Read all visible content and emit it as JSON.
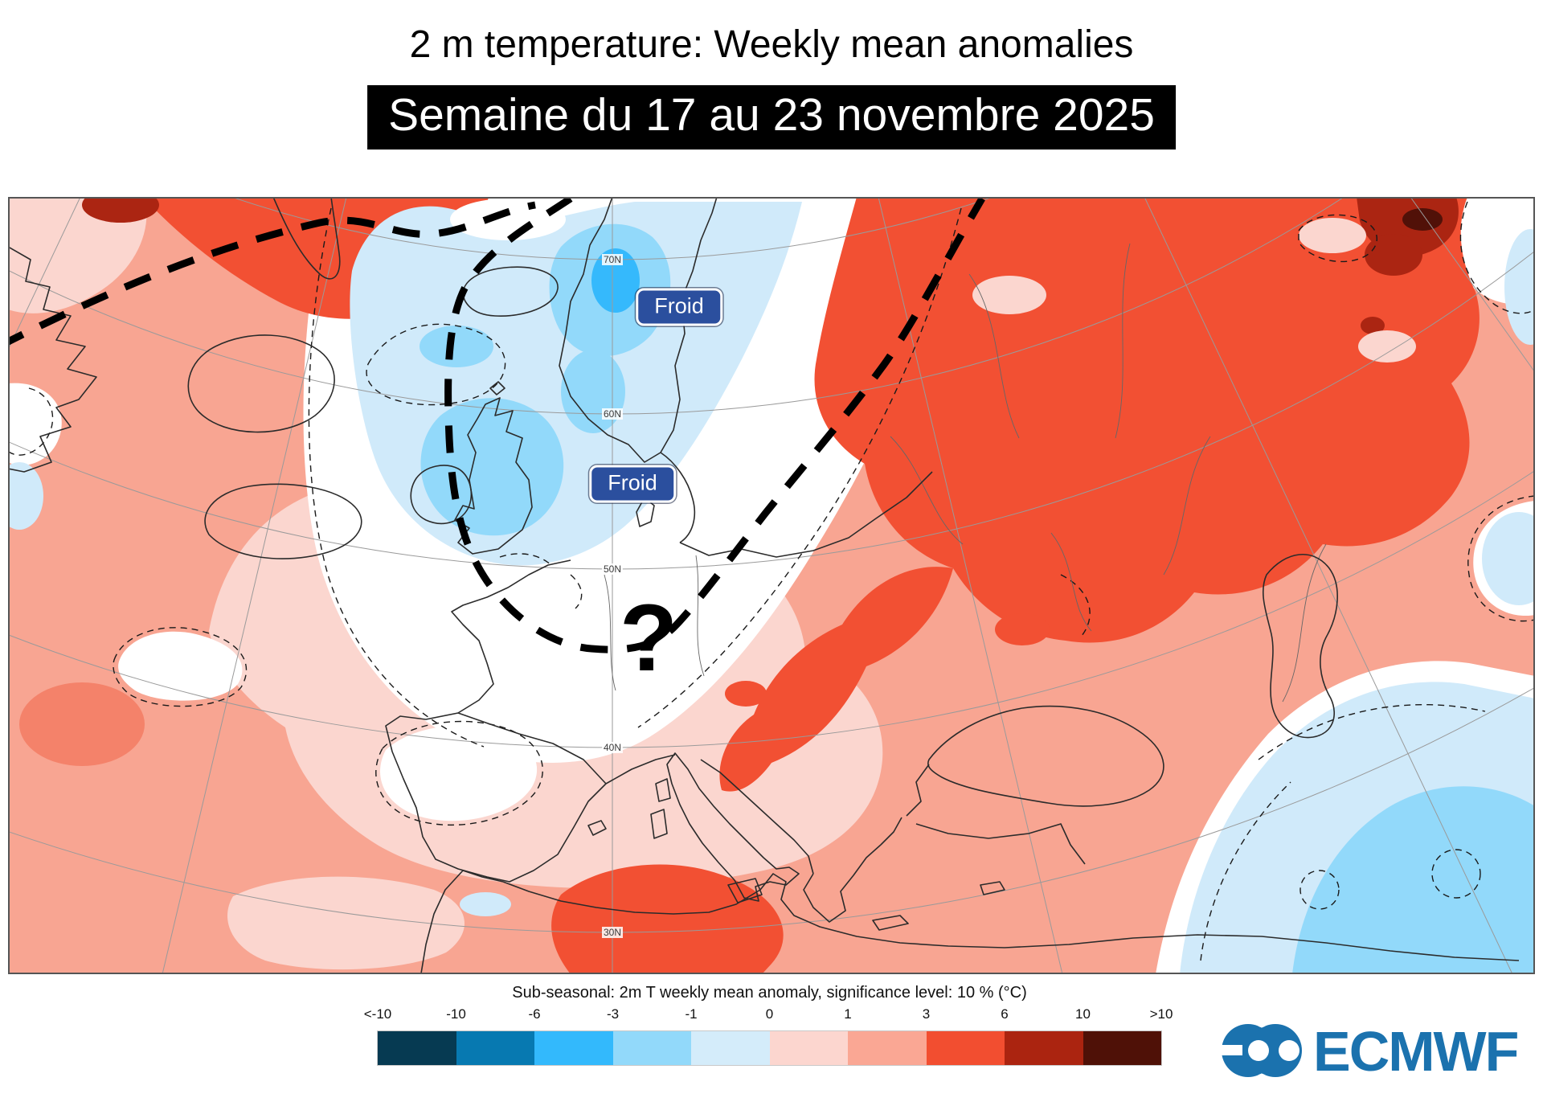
{
  "header": {
    "title": "2 m temperature: Weekly mean anomalies",
    "subtitle": "Semaine du 17 au 23 novembre 2025"
  },
  "map": {
    "labels": {
      "froid_1": "Froid",
      "froid_2": "Froid",
      "question_mark": "?"
    },
    "latitude_labels": [
      "70N",
      "60N",
      "50N",
      "40N",
      "30N"
    ],
    "label_box_color": "#2b4f9e",
    "anomaly_colors": {
      "pale_pink": "#fbd6cf",
      "salmon": "#f8a592",
      "red": "#f25033",
      "dark_red": "#ab2512",
      "maroon": "#511108",
      "pale_blue": "#d0eafa",
      "mid_blue": "#92d9fa",
      "bright_blue": "#35b9fc"
    }
  },
  "legend": {
    "caption": "Sub-seasonal: 2m T weekly mean anomaly, significance level: 10 % (°C)",
    "tick_labels": [
      "<-10",
      "-10",
      "-6",
      "-3",
      "-1",
      "0",
      "1",
      "3",
      "6",
      "10",
      ">10"
    ],
    "colors": [
      "#063a52",
      "#0779b1",
      "#33b9fc",
      "#92d9fa",
      "#d4ecfa",
      "#fcd6cf",
      "#faa794",
      "#f24e30",
      "#ab2410",
      "#4f1107"
    ]
  },
  "logo": {
    "text": "ECMWF",
    "color": "#1b72ae"
  }
}
